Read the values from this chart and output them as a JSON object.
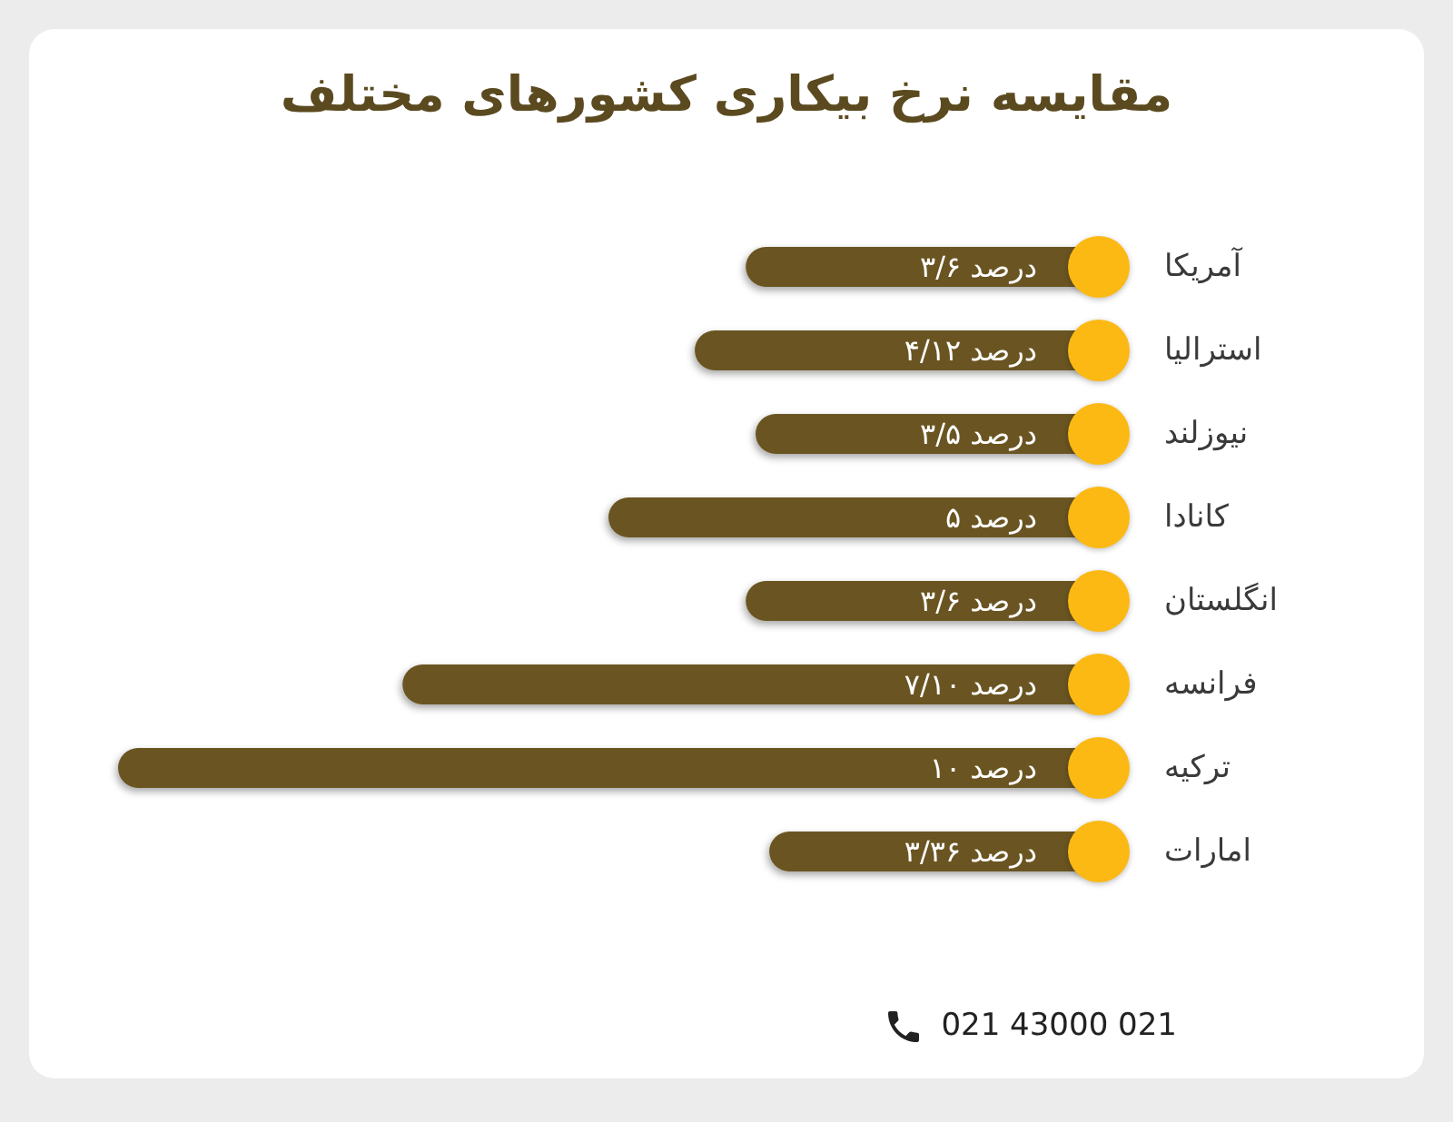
{
  "chart_data": {
    "type": "bar",
    "orientation": "horizontal",
    "title": "مقایسه نرخ بیکاری کشورهای مختلف",
    "categories": [
      "آمریکا",
      "استرالیا",
      "نیوزلند",
      "کانادا",
      "انگلستان",
      "فرانسه",
      "ترکیه",
      "امارات"
    ],
    "values": [
      3.6,
      4.12,
      3.5,
      5,
      3.6,
      7.1,
      10,
      3.36
    ],
    "value_labels": [
      "۳/۶ درصد",
      "۴/۱۲ درصد",
      "۳/۵ درصد",
      "۵ درصد",
      "۳/۶ درصد",
      "۷/۱۰ درصد",
      "۱۰ درصد",
      "۳/۳۶ درصد"
    ],
    "color": "#6b5420",
    "tick_labels": "y",
    "annotations": [
      "021 43000 021"
    ]
  }
}
